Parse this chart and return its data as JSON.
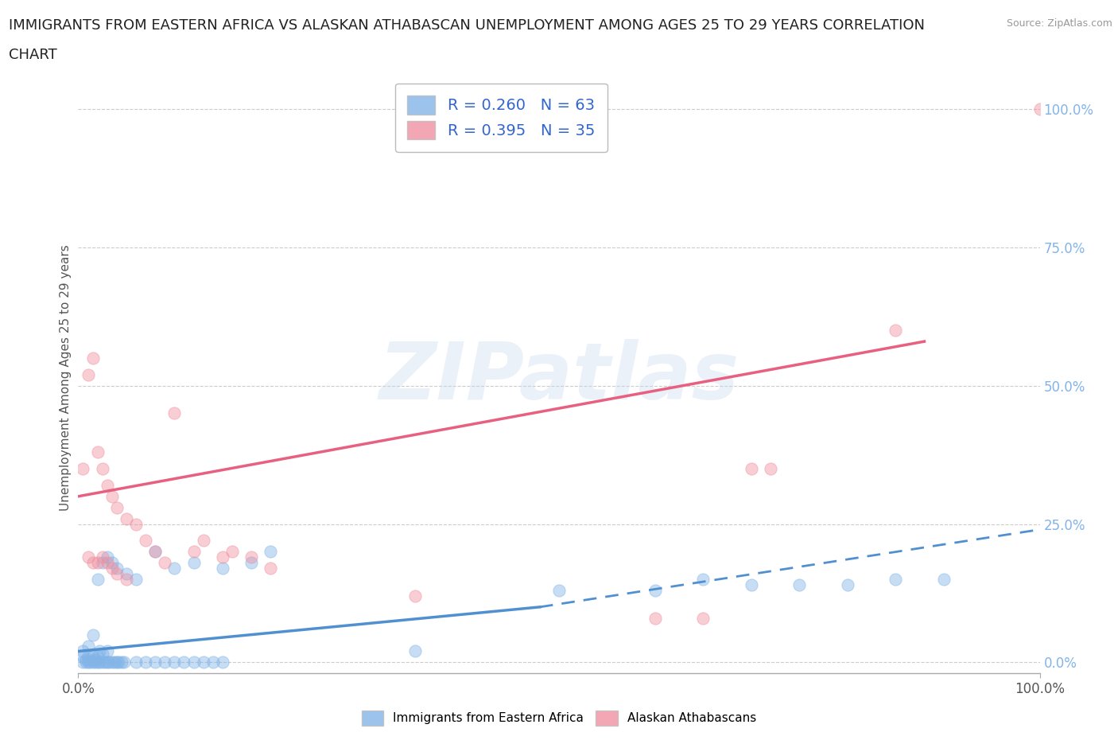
{
  "title_line1": "IMMIGRANTS FROM EASTERN AFRICA VS ALASKAN ATHABASCAN UNEMPLOYMENT AMONG AGES 25 TO 29 YEARS CORRELATION",
  "title_line2": "CHART",
  "source": "Source: ZipAtlas.com",
  "ylabel": "Unemployment Among Ages 25 to 29 years",
  "xlim": [
    0,
    1
  ],
  "ylim": [
    -0.02,
    1.05
  ],
  "xtick_labels": [
    "0.0%",
    "100.0%"
  ],
  "ytick_labels": [
    "0.0%",
    "25.0%",
    "50.0%",
    "75.0%",
    "100.0%"
  ],
  "ytick_positions": [
    0,
    0.25,
    0.5,
    0.75,
    1.0
  ],
  "legend_entries": [
    {
      "label": "R = 0.260   N = 63",
      "color": "#a8c8f0"
    },
    {
      "label": "R = 0.395   N = 35",
      "color": "#f5b8c8"
    }
  ],
  "bottom_legend": [
    {
      "label": "Immigrants from Eastern Africa",
      "color": "#a8c8f0"
    },
    {
      "label": "Alaskan Athabascans",
      "color": "#f5b8c8"
    }
  ],
  "blue_scatter": [
    [
      0.005,
      0.0
    ],
    [
      0.008,
      0.0
    ],
    [
      0.01,
      0.0
    ],
    [
      0.012,
      0.0
    ],
    [
      0.015,
      0.0
    ],
    [
      0.018,
      0.0
    ],
    [
      0.02,
      0.0
    ],
    [
      0.022,
      0.0
    ],
    [
      0.025,
      0.0
    ],
    [
      0.028,
      0.0
    ],
    [
      0.03,
      0.0
    ],
    [
      0.032,
      0.0
    ],
    [
      0.035,
      0.0
    ],
    [
      0.038,
      0.0
    ],
    [
      0.04,
      0.0
    ],
    [
      0.042,
      0.0
    ],
    [
      0.045,
      0.0
    ],
    [
      0.048,
      0.0
    ],
    [
      0.005,
      0.01
    ],
    [
      0.008,
      0.005
    ],
    [
      0.01,
      0.01
    ],
    [
      0.012,
      0.005
    ],
    [
      0.015,
      0.01
    ],
    [
      0.018,
      0.005
    ],
    [
      0.02,
      0.01
    ],
    [
      0.022,
      0.02
    ],
    [
      0.025,
      0.015
    ],
    [
      0.03,
      0.02
    ],
    [
      0.005,
      0.02
    ],
    [
      0.01,
      0.03
    ],
    [
      0.015,
      0.05
    ],
    [
      0.02,
      0.15
    ],
    [
      0.025,
      0.18
    ],
    [
      0.03,
      0.19
    ],
    [
      0.035,
      0.18
    ],
    [
      0.04,
      0.17
    ],
    [
      0.05,
      0.16
    ],
    [
      0.06,
      0.15
    ],
    [
      0.08,
      0.2
    ],
    [
      0.1,
      0.17
    ],
    [
      0.12,
      0.18
    ],
    [
      0.15,
      0.17
    ],
    [
      0.18,
      0.18
    ],
    [
      0.2,
      0.2
    ],
    [
      0.06,
      0.0
    ],
    [
      0.07,
      0.0
    ],
    [
      0.08,
      0.0
    ],
    [
      0.09,
      0.0
    ],
    [
      0.1,
      0.0
    ],
    [
      0.11,
      0.0
    ],
    [
      0.12,
      0.0
    ],
    [
      0.13,
      0.0
    ],
    [
      0.14,
      0.0
    ],
    [
      0.15,
      0.0
    ],
    [
      0.35,
      0.02
    ],
    [
      0.5,
      0.13
    ],
    [
      0.6,
      0.13
    ],
    [
      0.65,
      0.15
    ],
    [
      0.7,
      0.14
    ],
    [
      0.75,
      0.14
    ],
    [
      0.8,
      0.14
    ],
    [
      0.85,
      0.15
    ],
    [
      0.9,
      0.15
    ]
  ],
  "pink_scatter": [
    [
      0.005,
      0.35
    ],
    [
      0.01,
      0.52
    ],
    [
      0.015,
      0.55
    ],
    [
      0.02,
      0.38
    ],
    [
      0.025,
      0.35
    ],
    [
      0.03,
      0.32
    ],
    [
      0.035,
      0.3
    ],
    [
      0.04,
      0.28
    ],
    [
      0.05,
      0.26
    ],
    [
      0.06,
      0.25
    ],
    [
      0.07,
      0.22
    ],
    [
      0.08,
      0.2
    ],
    [
      0.09,
      0.18
    ],
    [
      0.1,
      0.45
    ],
    [
      0.12,
      0.2
    ],
    [
      0.13,
      0.22
    ],
    [
      0.15,
      0.19
    ],
    [
      0.16,
      0.2
    ],
    [
      0.18,
      0.19
    ],
    [
      0.2,
      0.17
    ],
    [
      0.01,
      0.19
    ],
    [
      0.015,
      0.18
    ],
    [
      0.02,
      0.18
    ],
    [
      0.025,
      0.19
    ],
    [
      0.03,
      0.18
    ],
    [
      0.035,
      0.17
    ],
    [
      0.04,
      0.16
    ],
    [
      0.05,
      0.15
    ],
    [
      0.35,
      0.12
    ],
    [
      0.6,
      0.08
    ],
    [
      0.65,
      0.08
    ],
    [
      0.7,
      0.35
    ],
    [
      0.72,
      0.35
    ],
    [
      0.85,
      0.6
    ],
    [
      1.0,
      1.0
    ]
  ],
  "blue_line_solid": {
    "x": [
      0.0,
      0.48
    ],
    "y": [
      0.02,
      0.1
    ]
  },
  "blue_line_dashed": {
    "x": [
      0.48,
      1.0
    ],
    "y": [
      0.1,
      0.24
    ]
  },
  "pink_line": {
    "x": [
      0.0,
      0.88
    ],
    "y": [
      0.3,
      0.58
    ]
  },
  "watermark_text": "ZIPatlas",
  "scatter_alpha": 0.45,
  "scatter_size": 120,
  "blue_color": "#82b4e8",
  "pink_color": "#f090a0",
  "blue_line_color": "#5090d0",
  "pink_line_color": "#e86080",
  "grid_color": "#cccccc",
  "background_color": "#ffffff",
  "title_fontsize": 13,
  "label_fontsize": 11,
  "tick_fontsize": 12
}
